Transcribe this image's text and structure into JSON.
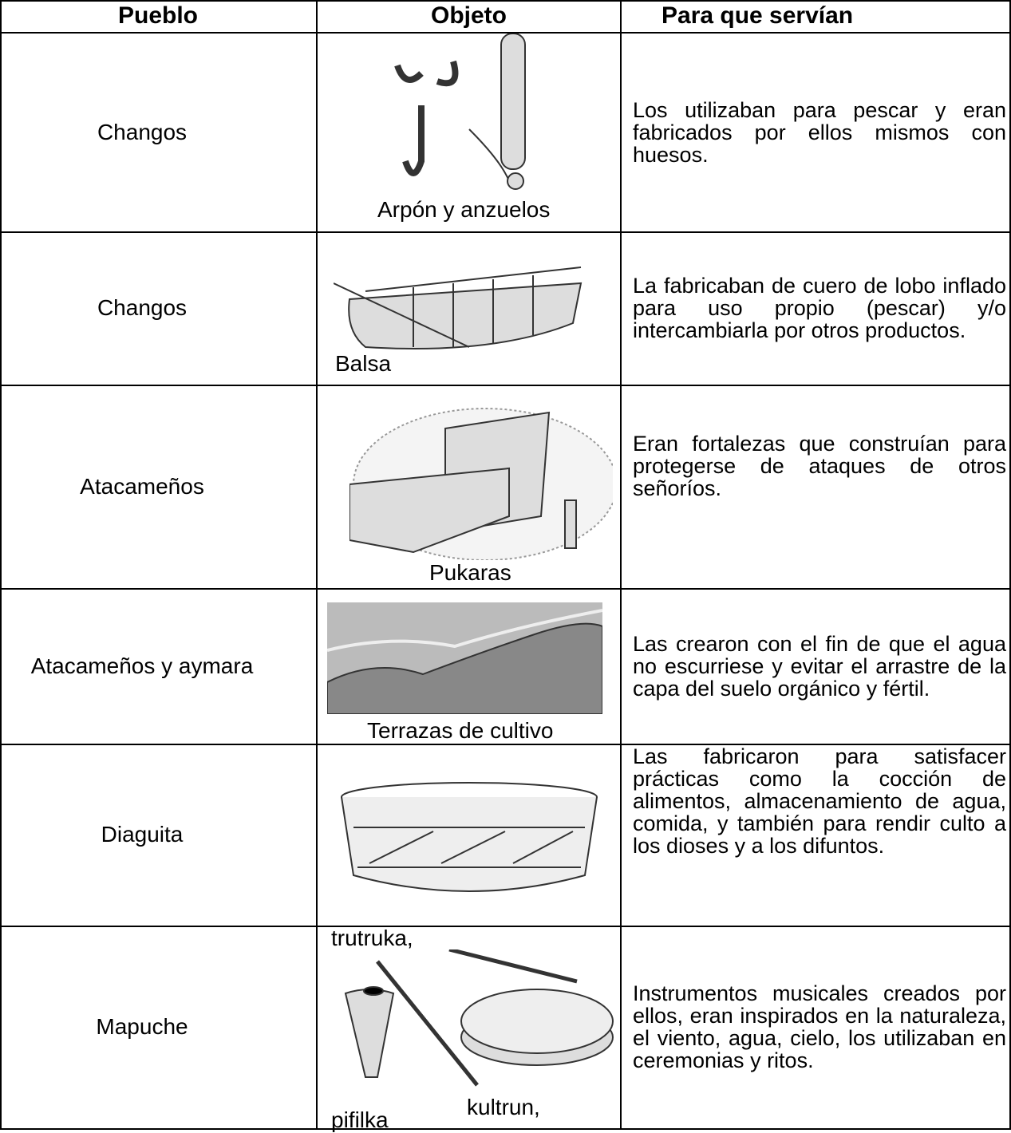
{
  "table": {
    "header": [
      "Pueblo",
      "Objeto",
      "Para que servían"
    ],
    "rows": [
      {
        "pueblo": "Changos",
        "objeto": [
          "Arpón y anzuelos"
        ],
        "descripcion": "Los utilizaban para pescar y eran fabricados por ellos mismos con huesos."
      },
      {
        "pueblo": "Changos",
        "objeto": [
          "Balsa"
        ],
        "descripcion": "La fabricaban de cuero de lobo inflado para uso propio (pescar) y/o intercambiarla por otros productos."
      },
      {
        "pueblo": "Atacameños",
        "objeto": [
          "Pukaras"
        ],
        "descripcion": "Eran fortalezas que construían para protegerse de ataques de otros señoríos."
      },
      {
        "pueblo": "Atacameños y aymara",
        "objeto": [
          "Terrazas de cultivo"
        ],
        "descripcion": "Las crearon con el fin de que el agua no escurriese y evitar el arrastre de la capa del suelo orgánico y fértil."
      },
      {
        "pueblo": "Diaguita",
        "objeto": [],
        "descripcion": "Las fabricaron para satisfacer prácticas como la cocción de alimentos, almacenamiento de agua, comida, y también para rendir culto a los dioses y a los difuntos."
      },
      {
        "pueblo": "Mapuche",
        "objeto": [
          "trutruka,",
          "kultrun,",
          "pifilka"
        ],
        "descripcion": "Instrumentos musicales creados por ellos, eran inspirados en la naturaleza, el viento, agua, cielo, los utilizaban en ceremonias y ritos."
      }
    ]
  }
}
